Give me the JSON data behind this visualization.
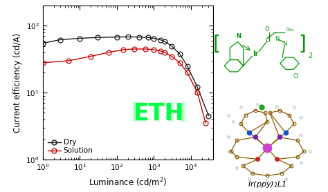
{
  "dry_x": [
    1.0,
    3.0,
    10.0,
    30.0,
    100.0,
    200.0,
    400.0,
    700.0,
    1000.0,
    1500.0,
    2000.0,
    3000.0,
    5000.0,
    8000.0,
    15000.0,
    30000.0
  ],
  "dry_y": [
    55.0,
    62.0,
    65.0,
    67.0,
    68.0,
    68.5,
    68.0,
    67.0,
    65.0,
    62.0,
    58.0,
    50.0,
    38.0,
    25.0,
    12.0,
    4.5
  ],
  "sol_x": [
    1.0,
    5.0,
    20.0,
    60.0,
    150.0,
    300.0,
    600.0,
    1000.0,
    1500.0,
    2000.0,
    3000.0,
    5000.0,
    8000.0,
    15000.0,
    25000.0
  ],
  "sol_y": [
    28.0,
    30.0,
    35.0,
    40.0,
    44.0,
    45.0,
    45.0,
    44.0,
    42.0,
    40.0,
    35.0,
    28.0,
    20.0,
    10.0,
    3.5
  ],
  "dry_color": "#1a1a1a",
  "sol_color": "#cc0000",
  "xlabel": "Luminance (cd/m$^2$)",
  "ylabel": "Current efficiency (cd/A)",
  "xlim_log": [
    1.0,
    40000.0
  ],
  "ylim_log": [
    1.0,
    200.0
  ],
  "legend_dry": "Dry",
  "legend_sol": "Solution",
  "plot_bg": "#ffffff",
  "axes_bg": "#ffffff",
  "marker_size": 5,
  "line_width": 1.0,
  "eth_bg": "#002200",
  "eth_fg": "#00ff44",
  "eth_glow": "#00dd33"
}
